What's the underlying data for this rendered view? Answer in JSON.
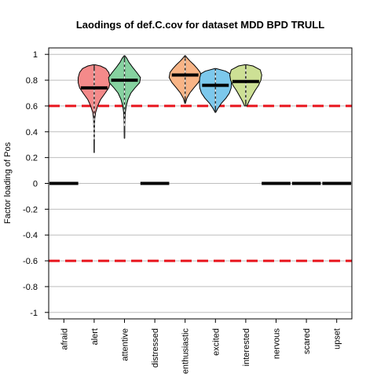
{
  "chart_data": {
    "type": "violin",
    "title": "Laodings of def.C.cov for dataset MDD BPD TRULL",
    "xlabel": "",
    "ylabel": "Factor loading of Pos",
    "ylim": [
      -1.05,
      1.05
    ],
    "yticks": [
      1,
      0.8,
      0.6,
      0.4,
      0.2,
      0,
      -0.2,
      -0.4,
      -0.6,
      -0.8,
      -1
    ],
    "grid": true,
    "threshold_lines": [
      0.6,
      -0.6
    ],
    "threshold_color": "#e8141c",
    "categories": [
      "afraid",
      "alert",
      "attentive",
      "distressed",
      "enthusiastic",
      "excited",
      "interested",
      "nervous",
      "scared",
      "upset"
    ],
    "series": [
      {
        "category": "afraid",
        "median": 0,
        "violin": null
      },
      {
        "category": "alert",
        "median": 0.74,
        "color": "#f48a8a",
        "violin": {
          "min": 0.24,
          "max": 0.92,
          "profile": [
            [
              0.24,
              0.005
            ],
            [
              0.3,
              0.006
            ],
            [
              0.4,
              0.01
            ],
            [
              0.5,
              0.02
            ],
            [
              0.55,
              0.05
            ],
            [
              0.6,
              0.12
            ],
            [
              0.65,
              0.22
            ],
            [
              0.7,
              0.38
            ],
            [
              0.74,
              0.5
            ],
            [
              0.78,
              0.55
            ],
            [
              0.82,
              0.55
            ],
            [
              0.86,
              0.5
            ],
            [
              0.89,
              0.4
            ],
            [
              0.91,
              0.22
            ],
            [
              0.92,
              0.02
            ]
          ]
        }
      },
      {
        "category": "attentive",
        "median": 0.8,
        "color": "#86d2a0",
        "violin": {
          "min": 0.35,
          "max": 0.99,
          "profile": [
            [
              0.35,
              0.005
            ],
            [
              0.4,
              0.01
            ],
            [
              0.45,
              0.01
            ],
            [
              0.5,
              0.02
            ],
            [
              0.55,
              0.03
            ],
            [
              0.6,
              0.06
            ],
            [
              0.65,
              0.12
            ],
            [
              0.7,
              0.22
            ],
            [
              0.74,
              0.36
            ],
            [
              0.78,
              0.52
            ],
            [
              0.82,
              0.55
            ],
            [
              0.86,
              0.42
            ],
            [
              0.9,
              0.28
            ],
            [
              0.94,
              0.15
            ],
            [
              0.97,
              0.08
            ],
            [
              0.99,
              0.01
            ]
          ]
        }
      },
      {
        "category": "distressed",
        "median": 0,
        "violin": null
      },
      {
        "category": "enthusiastic",
        "median": 0.84,
        "color": "#f8b486",
        "violin": {
          "min": 0.62,
          "max": 0.99,
          "profile": [
            [
              0.62,
              0.01
            ],
            [
              0.66,
              0.06
            ],
            [
              0.7,
              0.16
            ],
            [
              0.74,
              0.3
            ],
            [
              0.78,
              0.45
            ],
            [
              0.82,
              0.55
            ],
            [
              0.86,
              0.52
            ],
            [
              0.89,
              0.42
            ],
            [
              0.92,
              0.3
            ],
            [
              0.95,
              0.16
            ],
            [
              0.97,
              0.08
            ],
            [
              0.99,
              0.01
            ]
          ]
        }
      },
      {
        "category": "excited",
        "median": 0.76,
        "color": "#7cc8ec",
        "violin": {
          "min": 0.55,
          "max": 0.89,
          "profile": [
            [
              0.55,
              0.01
            ],
            [
              0.58,
              0.08
            ],
            [
              0.62,
              0.2
            ],
            [
              0.66,
              0.36
            ],
            [
              0.7,
              0.48
            ],
            [
              0.74,
              0.54
            ],
            [
              0.78,
              0.55
            ],
            [
              0.82,
              0.54
            ],
            [
              0.85,
              0.5
            ],
            [
              0.87,
              0.35
            ],
            [
              0.89,
              0.02
            ]
          ]
        }
      },
      {
        "category": "interested",
        "median": 0.79,
        "color": "#cde095",
        "violin": {
          "min": 0.6,
          "max": 0.92,
          "profile": [
            [
              0.6,
              0.04
            ],
            [
              0.64,
              0.12
            ],
            [
              0.68,
              0.22
            ],
            [
              0.72,
              0.32
            ],
            [
              0.76,
              0.44
            ],
            [
              0.8,
              0.52
            ],
            [
              0.84,
              0.55
            ],
            [
              0.88,
              0.5
            ],
            [
              0.91,
              0.25
            ],
            [
              0.92,
              0.02
            ]
          ]
        }
      },
      {
        "category": "nervous",
        "median": 0,
        "violin": null
      },
      {
        "category": "scared",
        "median": 0,
        "violin": null
      },
      {
        "category": "upset",
        "median": 0,
        "violin": null
      }
    ]
  }
}
